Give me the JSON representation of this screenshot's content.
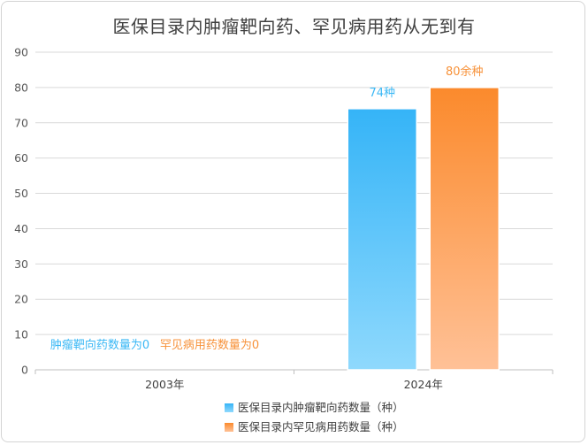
{
  "chart_data": {
    "type": "bar",
    "title": "医保目录内肿瘤靶向药、罕见病用药从无到有",
    "categories": [
      "2003年",
      "2024年"
    ],
    "series": [
      {
        "name": "医保目录内肿瘤靶向药数量（种）",
        "values": [
          0,
          74
        ],
        "color": "#3bb8f5"
      },
      {
        "name": "医保目录内罕见病用药数量（种）",
        "values": [
          0,
          80
        ],
        "color": "#f7923a"
      }
    ],
    "data_labels": [
      [
        "肿瘤靶向药数量为0",
        "74种"
      ],
      [
        "罕见病用药数量为0",
        "80余种"
      ]
    ],
    "ylim": [
      0,
      90
    ],
    "yticks": [
      0,
      10,
      20,
      30,
      40,
      50,
      60,
      70,
      80,
      90
    ],
    "grid": true,
    "legend_position": "bottom"
  }
}
